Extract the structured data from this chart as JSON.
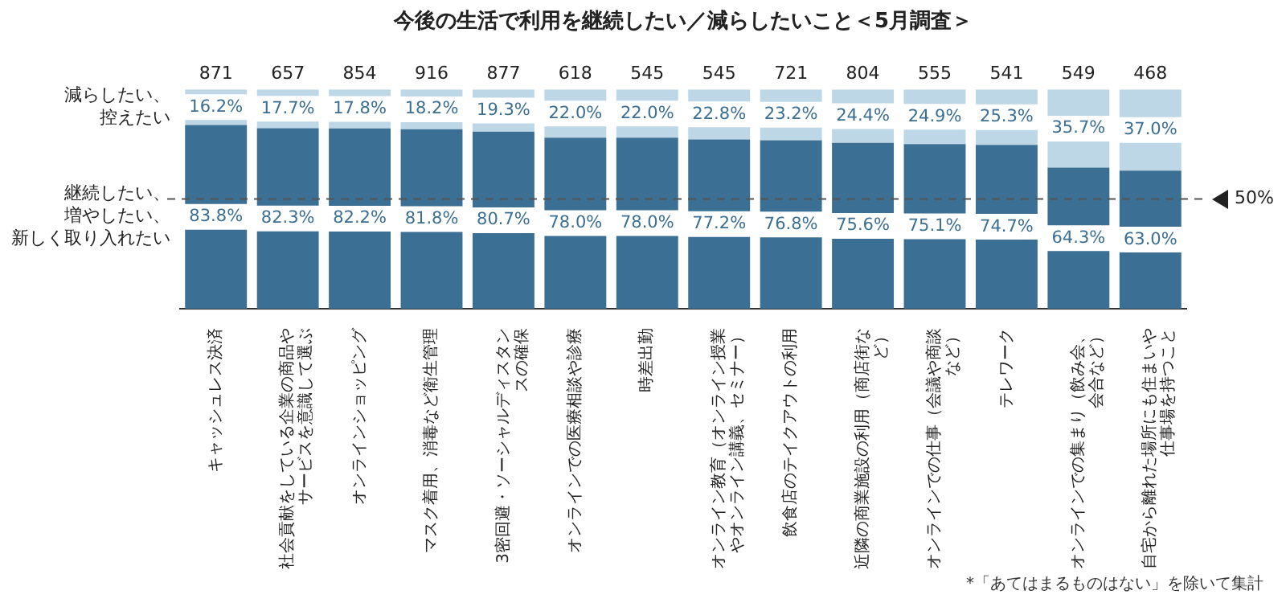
{
  "chart_data": {
    "type": "bar",
    "title": "今後の生活で利用を継続したい／減らしたいこと＜5月調査＞",
    "categories": [
      "キャッシュレス決済",
      "社会貢献をしている企業の商品やサービスを意識して選ぶ",
      "オンラインショッピング",
      "マスク着用、消毒など衛生管理",
      "3密回避・ソーシャルディスタンスの確保",
      "オンラインでの医療相談や診療",
      "時差出勤",
      "オンライン教育（オンライン授業やオンライン講義、セミナー）",
      "飲食店のテイクアウトの利用",
      "近隣の商業施設の利用（商店街など）",
      "オンラインでの仕事（会議や商談など）",
      "テレワーク",
      "オンラインでの集まり（飲み会、会合など）",
      "自宅から離れた場所にも住まいや仕事場を持つこと"
    ],
    "series": [
      {
        "name": "継続したい、増やしたい、新しく取り入れたい",
        "color": "#3b6f93",
        "values": [
          83.8,
          82.3,
          82.2,
          81.8,
          80.7,
          78.0,
          78.0,
          77.2,
          76.8,
          75.6,
          75.1,
          74.7,
          64.3,
          63.0
        ],
        "value_labels": [
          "83.8%",
          "82.3%",
          "82.2%",
          "81.8%",
          "80.7%",
          "78.0%",
          "78.0%",
          "77.2%",
          "76.8%",
          "75.6%",
          "75.1%",
          "74.7%",
          "64.3%",
          "63.0%"
        ]
      },
      {
        "name": "減らしたい、控えたい",
        "color": "#bdd7e7",
        "values": [
          16.2,
          17.7,
          17.8,
          18.2,
          19.3,
          22.0,
          22.0,
          22.8,
          23.2,
          24.4,
          24.9,
          25.3,
          35.7,
          37.0
        ],
        "value_labels": [
          "16.2%",
          "17.7%",
          "17.8%",
          "18.2%",
          "19.3%",
          "22.0%",
          "22.0%",
          "22.8%",
          "23.2%",
          "24.4%",
          "24.9%",
          "25.3%",
          "35.7%",
          "37.0%"
        ]
      }
    ],
    "stacked": true,
    "ylim": [
      0,
      100
    ],
    "tick_labels": "x",
    "grid": false,
    "legend": false,
    "ref_lines": [
      {
        "axis": "y",
        "value": 50,
        "label": "50%",
        "color": "#555555",
        "line_style": "dashed"
      }
    ],
    "annotations": [
      {
        "text": "871",
        "x": "キャッシュレス決済",
        "y": 100
      },
      {
        "text": "657",
        "x": "社会貢献をしている企業の商品やサービスを意識して選ぶ",
        "y": 100
      },
      {
        "text": "854",
        "x": "オンラインショッピング",
        "y": 100
      },
      {
        "text": "916",
        "x": "マスク着用、消毒など衛生管理",
        "y": 100
      },
      {
        "text": "877",
        "x": "3密回避・ソーシャルディスタンスの確保",
        "y": 100
      },
      {
        "text": "618",
        "x": "オンラインでの医療相談や診療",
        "y": 100
      },
      {
        "text": "545",
        "x": "時差出勤",
        "y": 100
      },
      {
        "text": "545",
        "x": "オンライン教育（オンライン授業やオンライン講義、セミナー）",
        "y": 100
      },
      {
        "text": "721",
        "x": "飲食店のテイクアウトの利用",
        "y": 100
      },
      {
        "text": "804",
        "x": "近隣の商業施設の利用（商店街など）",
        "y": 100
      },
      {
        "text": "555",
        "x": "オンラインでの仕事（会議や商談など）",
        "y": 100
      },
      {
        "text": "541",
        "x": "テレワーク",
        "y": 100
      },
      {
        "text": "549",
        "x": "オンラインでの集まり（飲み会、会合など）",
        "y": 100
      },
      {
        "text": "468",
        "x": "自宅から離れた場所にも住まいや仕事場を持つこと",
        "y": 100
      },
      "*「あてはまるものはない」を除いて集計"
    ]
  }
}
